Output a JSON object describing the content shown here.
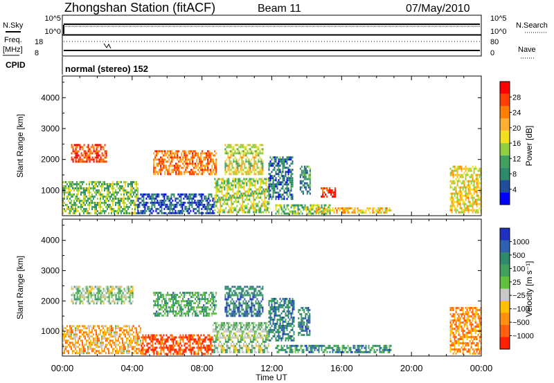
{
  "header": {
    "station": "Zhongshan Station (fitACF)",
    "beam": "Beam 11",
    "date": "07/May/2010"
  },
  "top_panels": {
    "nsky_label": "N.Sky",
    "nsky_ticks": [
      "10^5",
      "10^0"
    ],
    "nsearch_label": "N.Search",
    "nsearch_ticks": [
      "10^5",
      "10^0"
    ],
    "freq_label_line1": "Freq.",
    "freq_label_line2": "[MHz]",
    "freq_ticks": [
      "18",
      "8"
    ],
    "nave_label": "Nave",
    "nave_ticks": [
      "80",
      "0"
    ],
    "cpid_label": "CPID",
    "cpid_text": "normal (stereo) 152"
  },
  "chart_data": [
    {
      "type": "heatmap",
      "panel": "power",
      "xlabel": "Time UT",
      "ylabel": "Slant Range [km]",
      "x_ticks": [
        "00:00",
        "04:00",
        "08:00",
        "12:00",
        "16:00",
        "20:00",
        "00:00"
      ],
      "xlim_hours": [
        0,
        24
      ],
      "y_ticks": [
        1000,
        2000,
        3000,
        4000
      ],
      "ylim": [
        180,
        4700
      ],
      "colorbar_label": "Power [dB]",
      "colorbar_ticks": [
        "28",
        "24",
        "20",
        "16",
        "12",
        "8",
        "4"
      ],
      "colorbar_colors": [
        "#ff0000",
        "#ff4000",
        "#ff8000",
        "#ffb030",
        "#f0e020",
        "#90d040",
        "#40a060",
        "#2e8a6a",
        "#1f4f9a",
        "#0000ff"
      ],
      "clusters": [
        {
          "t": [
            0.0,
            4.3
          ],
          "r": [
            280,
            1300
          ],
          "v": 0.55
        },
        {
          "t": [
            4.3,
            8.7
          ],
          "r": [
            280,
            900
          ],
          "v": 0.8
        },
        {
          "t": [
            8.7,
            11.8
          ],
          "r": [
            280,
            1400
          ],
          "v": 0.5
        },
        {
          "t": [
            11.8,
            13.2
          ],
          "r": [
            700,
            2100
          ],
          "v": 0.75
        },
        {
          "t": [
            13.6,
            14.2
          ],
          "r": [
            900,
            1800
          ],
          "v": 0.7
        },
        {
          "t": [
            12.2,
            15.3
          ],
          "r": [
            280,
            550
          ],
          "v": 0.55
        },
        {
          "t": [
            14.5,
            18.8
          ],
          "r": [
            300,
            450
          ],
          "v": 0.35
        },
        {
          "t": [
            0.5,
            2.5
          ],
          "r": [
            1900,
            2500
          ],
          "v": 0.12
        },
        {
          "t": [
            5.2,
            8.8
          ],
          "r": [
            1500,
            2300
          ],
          "v": 0.22
        },
        {
          "t": [
            9.3,
            11.5
          ],
          "r": [
            1500,
            2500
          ],
          "v": 0.45
        },
        {
          "t": [
            22.2,
            24.0
          ],
          "r": [
            280,
            1800
          ],
          "v": 0.4
        },
        {
          "t": [
            14.8,
            15.6
          ],
          "r": [
            800,
            1100
          ],
          "v": 0.05
        }
      ]
    },
    {
      "type": "heatmap",
      "panel": "velocity",
      "xlabel": "Time UT",
      "ylabel": "Slant Range [km]",
      "x_ticks": [
        "00:00",
        "04:00",
        "08:00",
        "12:00",
        "16:00",
        "20:00",
        "00:00"
      ],
      "xlim_hours": [
        0,
        24
      ],
      "y_ticks": [
        1000,
        2000,
        3000,
        4000
      ],
      "ylim": [
        180,
        4700
      ],
      "colorbar_label": "Velocity [m s⁻¹]",
      "colorbar_ticks": [
        "1000",
        "500",
        "100",
        "25",
        "−25",
        "−100",
        "−500",
        "−1000"
      ],
      "colorbar_colors": [
        "#2030c0",
        "#3060b0",
        "#2e8a6a",
        "#40a060",
        "#60c040",
        "#c8c8c8",
        "#ffc000",
        "#ff9010",
        "#ff6010",
        "#ff2000"
      ],
      "clusters": [
        {
          "t": [
            0.0,
            4.5
          ],
          "r": [
            280,
            1200
          ],
          "v": 0.65
        },
        {
          "t": [
            4.5,
            8.6
          ],
          "r": [
            280,
            900
          ],
          "v": 0.85
        },
        {
          "t": [
            8.6,
            11.8
          ],
          "r": [
            280,
            1300
          ],
          "v": 0.45
        },
        {
          "t": [
            11.8,
            13.3
          ],
          "r": [
            700,
            2100
          ],
          "v": 0.22
        },
        {
          "t": [
            13.5,
            14.2
          ],
          "r": [
            900,
            1800
          ],
          "v": 0.22
        },
        {
          "t": [
            12.2,
            18.8
          ],
          "r": [
            280,
            550
          ],
          "v": 0.25
        },
        {
          "t": [
            0.5,
            4.0
          ],
          "r": [
            1900,
            2500
          ],
          "v": 0.45
        },
        {
          "t": [
            5.2,
            8.8
          ],
          "r": [
            1500,
            2300
          ],
          "v": 0.35
        },
        {
          "t": [
            9.3,
            11.5
          ],
          "r": [
            1500,
            2500
          ],
          "v": 0.2
        },
        {
          "t": [
            22.2,
            24.0
          ],
          "r": [
            280,
            1800
          ],
          "v": 0.72
        }
      ]
    }
  ]
}
